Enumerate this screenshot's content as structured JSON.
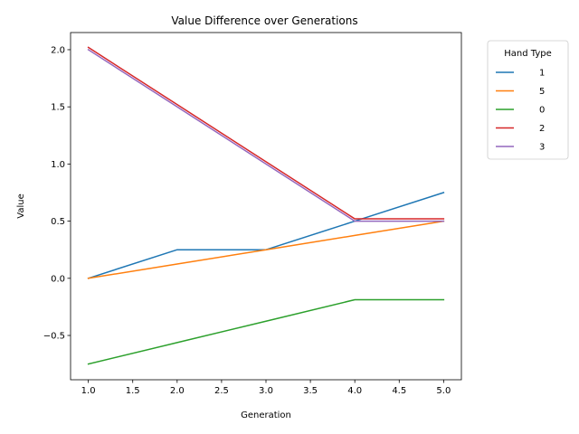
{
  "chart_data": {
    "type": "line",
    "title": "Value Difference over Generations",
    "xlabel": "Generation",
    "ylabel": "Value",
    "x": [
      1,
      2,
      3,
      4,
      5
    ],
    "xlim": [
      0.8,
      5.2
    ],
    "ylim": [
      -0.8875,
      2.15
    ],
    "xticks": [
      1.0,
      1.5,
      2.0,
      2.5,
      3.0,
      3.5,
      4.0,
      4.5,
      5.0
    ],
    "xtick_labels": [
      "1.0",
      "1.5",
      "2.0",
      "2.5",
      "3.0",
      "3.5",
      "4.0",
      "4.5",
      "5.0"
    ],
    "yticks": [
      -0.5,
      0.0,
      0.5,
      1.0,
      1.5,
      2.0
    ],
    "ytick_labels": [
      "−0.5",
      "0.0",
      "0.5",
      "1.0",
      "1.5",
      "2.0"
    ],
    "grid": false,
    "legend": {
      "title": "Hand Type",
      "placement": "outside-top-right"
    },
    "series": [
      {
        "name": "1",
        "color": "#1f77b4",
        "values": [
          0.0,
          0.25,
          0.25,
          0.5,
          0.75
        ]
      },
      {
        "name": "5",
        "color": "#ff7f0e",
        "values": [
          0.0,
          0.125,
          0.25,
          0.375,
          0.5
        ]
      },
      {
        "name": "0",
        "color": "#2ca02c",
        "values": [
          -0.75,
          -0.5625,
          -0.375,
          -0.1875,
          -0.1875
        ]
      },
      {
        "name": "2",
        "color": "#d62728",
        "values": [
          2.02,
          1.52,
          1.02,
          0.52,
          0.52
        ]
      },
      {
        "name": "3",
        "color": "#9467bd",
        "values": [
          2.0,
          1.5,
          1.0,
          0.5,
          0.5
        ]
      }
    ]
  }
}
